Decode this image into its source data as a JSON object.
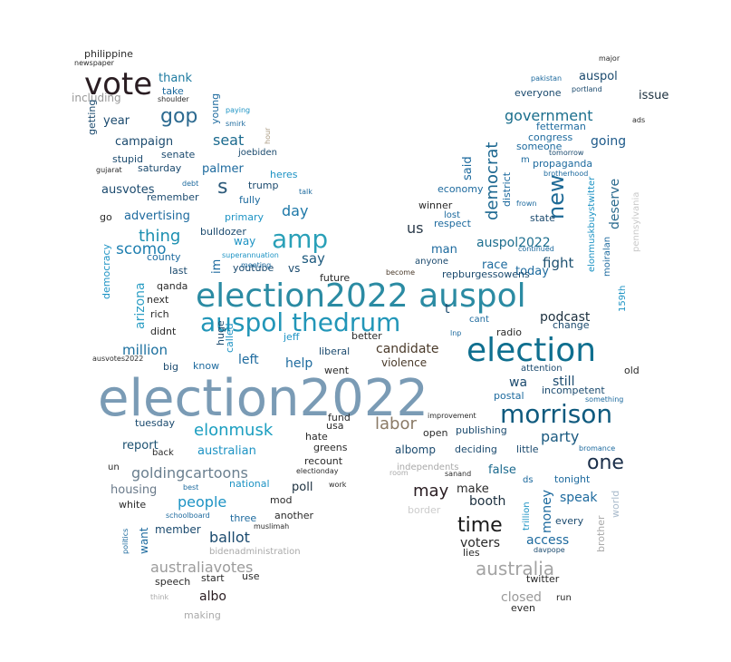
{
  "word_cloud": {
    "words": [
      {
        "text": "election2022",
        "color": "#7a9bb5"
      },
      {
        "text": "election2022 auspol",
        "color": "#2b8ba3"
      },
      {
        "text": "election",
        "color": "#0f6f8f"
      },
      {
        "text": "auspol thedrum",
        "color": "#2296b8"
      },
      {
        "text": "vote",
        "color": "#2a1d22"
      },
      {
        "text": "amp",
        "color": "#2aa0b8"
      },
      {
        "text": "morrison",
        "color": "#0f5a7e"
      },
      {
        "text": "time",
        "color": "#1a1a1a"
      },
      {
        "text": "australia",
        "color": "#a3a3a3"
      },
      {
        "text": "new",
        "color": "#1e6a96"
      },
      {
        "text": "one",
        "color": "#1b2f4a"
      },
      {
        "text": "gop",
        "color": "#2c6a90"
      },
      {
        "text": "s",
        "color": "#2c5a7a"
      },
      {
        "text": "government",
        "color": "#1a6e8c"
      },
      {
        "text": "democrat",
        "color": "#1c6790"
      },
      {
        "text": "elonmusk",
        "color": "#1b9ec0"
      },
      {
        "text": "goldingcartoons",
        "color": "#6a7f8f"
      },
      {
        "text": "thing",
        "color": "#1b8fb0"
      },
      {
        "text": "scomo",
        "color": "#1f7fb0"
      },
      {
        "text": "labor",
        "color": "#8a7a66"
      },
      {
        "text": "party",
        "color": "#1b5a80"
      },
      {
        "text": "ballot",
        "color": "#1b4a6e"
      },
      {
        "text": "people",
        "color": "#1d93c4"
      },
      {
        "text": "australiavotes",
        "color": "#9b9b9b"
      },
      {
        "text": "may",
        "color": "#2a1d22"
      },
      {
        "text": "seat",
        "color": "#1b6a8e"
      },
      {
        "text": "day",
        "color": "#1d78a8"
      },
      {
        "text": "say",
        "color": "#1d5a7e"
      },
      {
        "text": "us",
        "color": "#2a3a4a"
      },
      {
        "text": "fight",
        "color": "#1d5070"
      },
      {
        "text": "going",
        "color": "#1e5a8a"
      },
      {
        "text": "deserve",
        "color": "#2a6a8e"
      },
      {
        "text": "auspol2022",
        "color": "#1d6e8e"
      },
      {
        "text": "million",
        "color": "#1a6e9e"
      },
      {
        "text": "arizona",
        "color": "#2c9ec4"
      },
      {
        "text": "podcast",
        "color": "#1b2f3e"
      },
      {
        "text": "wa",
        "color": "#1b4a6e"
      },
      {
        "text": "still",
        "color": "#1b4a6e"
      },
      {
        "text": "money",
        "color": "#1d6a9e"
      },
      {
        "text": "access",
        "color": "#1d6a9e"
      },
      {
        "text": "speak",
        "color": "#1d6a9e"
      },
      {
        "text": "closed",
        "color": "#9a9a9a"
      },
      {
        "text": "albo",
        "color": "#2a1d22"
      },
      {
        "text": "help",
        "color": "#1d6a9e"
      },
      {
        "text": "left",
        "color": "#1d6a9e"
      },
      {
        "text": "candidate",
        "color": "#4a3a2a"
      },
      {
        "text": "voters",
        "color": "#2a2a2a"
      },
      {
        "text": "booth",
        "color": "#1b2f3e"
      },
      {
        "text": "make",
        "color": "#2a2a2a"
      },
      {
        "text": "false",
        "color": "#1b6a8e"
      },
      {
        "text": "housing",
        "color": "#6a7a8a"
      },
      {
        "text": "report",
        "color": "#1b5070"
      },
      {
        "text": "australian",
        "color": "#1d93c4"
      },
      {
        "text": "campaign",
        "color": "#1b4a6e"
      },
      {
        "text": "thank",
        "color": "#1d7aa0"
      },
      {
        "text": "year",
        "color": "#1b4a6e"
      },
      {
        "text": "ausvotes",
        "color": "#1b4a6e"
      },
      {
        "text": "advertising",
        "color": "#1d6a9e"
      },
      {
        "text": "palmer",
        "color": "#1d6a9e"
      },
      {
        "text": "im",
        "color": "#1d6a9e"
      },
      {
        "text": "vs",
        "color": "#1b4a6e"
      },
      {
        "text": "way",
        "color": "#1d93c4"
      },
      {
        "text": "man",
        "color": "#1d6a9e"
      },
      {
        "text": "race",
        "color": "#1d6a9e"
      },
      {
        "text": "today",
        "color": "#1d6a9e"
      },
      {
        "text": "said",
        "color": "#1d6a9e"
      },
      {
        "text": "auspol",
        "color": "#1b4a6e"
      },
      {
        "text": "issue",
        "color": "#1b2f3e"
      },
      {
        "text": "everyone",
        "color": "#1b4a6e"
      },
      {
        "text": "fetterman",
        "color": "#1d6a9e"
      },
      {
        "text": "congress",
        "color": "#1d6a9e"
      },
      {
        "text": "propaganda",
        "color": "#1d6a9e"
      },
      {
        "text": "someone",
        "color": "#1d6a9e"
      },
      {
        "text": "poll",
        "color": "#1b2f3e"
      },
      {
        "text": "member",
        "color": "#1b4a6e"
      },
      {
        "text": "want",
        "color": "#1d6a9e"
      },
      {
        "text": "another",
        "color": "#2a2a2a"
      },
      {
        "text": "three",
        "color": "#1d6a9e"
      },
      {
        "text": "speech",
        "color": "#2a2a2a"
      },
      {
        "text": "start",
        "color": "#2a2a2a"
      },
      {
        "text": "use",
        "color": "#2a2a2a"
      },
      {
        "text": "making",
        "color": "#aaaaaa"
      },
      {
        "text": "white",
        "color": "#2a2a2a"
      },
      {
        "text": "national",
        "color": "#1d93c4"
      },
      {
        "text": "mod",
        "color": "#2a2a2a"
      },
      {
        "text": "recount",
        "color": "#2a2a2a"
      },
      {
        "text": "greens",
        "color": "#2a2a2a"
      },
      {
        "text": "hate",
        "color": "#2a2a2a"
      },
      {
        "text": "usa",
        "color": "#2a2a2a"
      },
      {
        "text": "fund",
        "color": "#2a2a2a"
      },
      {
        "text": "went",
        "color": "#2a2a2a"
      },
      {
        "text": "violence",
        "color": "#4a3a2a"
      },
      {
        "text": "liberal",
        "color": "#1b4a6e"
      },
      {
        "text": "better",
        "color": "#2a2a2a"
      },
      {
        "text": "future",
        "color": "#2a2a2a"
      },
      {
        "text": "jeff",
        "color": "#1d93c4"
      },
      {
        "text": "called",
        "color": "#1d93c4"
      },
      {
        "text": "huge",
        "color": "#1b4a6e"
      },
      {
        "text": "know",
        "color": "#1d6a9e"
      },
      {
        "text": "big",
        "color": "#1b4a6e"
      },
      {
        "text": "didnt",
        "color": "#2a2a2a"
      },
      {
        "text": "rich",
        "color": "#2a2a2a"
      },
      {
        "text": "next",
        "color": "#2a2a2a"
      },
      {
        "text": "qanda",
        "color": "#2a2a2a"
      },
      {
        "text": "last",
        "color": "#1b4a6e"
      },
      {
        "text": "county",
        "color": "#1d6a9e"
      },
      {
        "text": "democracy",
        "color": "#1d93c4"
      },
      {
        "text": "go",
        "color": "#2a2a2a"
      },
      {
        "text": "remember",
        "color": "#1b4a6e"
      },
      {
        "text": "saturday",
        "color": "#1b4a6e"
      },
      {
        "text": "stupid",
        "color": "#1b4a6e"
      },
      {
        "text": "senate",
        "color": "#1b4a6e"
      },
      {
        "text": "take",
        "color": "#1d6a9e"
      },
      {
        "text": "including",
        "color": "#999999"
      },
      {
        "text": "philippine",
        "color": "#2a2a2a"
      },
      {
        "text": "newspaper",
        "color": "#2a2a2a"
      },
      {
        "text": "getting",
        "color": "#1b4a6e"
      },
      {
        "text": "gujarat",
        "color": "#2a2a2a"
      },
      {
        "text": "young",
        "color": "#1d6a9e"
      },
      {
        "text": "shoulder",
        "color": "#2a2a2a"
      },
      {
        "text": "paying",
        "color": "#1d93c4"
      },
      {
        "text": "smirk",
        "color": "#1d6a9e"
      },
      {
        "text": "hour",
        "color": "#aa9a80"
      },
      {
        "text": "joebiden",
        "color": "#1b4a6e"
      },
      {
        "text": "heres",
        "color": "#1d93c4"
      },
      {
        "text": "trump",
        "color": "#1b4a6e"
      },
      {
        "text": "fully",
        "color": "#1d6a9e"
      },
      {
        "text": "talk",
        "color": "#1d6a9e"
      },
      {
        "text": "debt",
        "color": "#1d6a9e"
      },
      {
        "text": "primary",
        "color": "#1d93c4"
      },
      {
        "text": "bulldozer",
        "color": "#1b4a6e"
      },
      {
        "text": "youtube",
        "color": "#1b4a6e"
      },
      {
        "text": "superannuation",
        "color": "#1d93c4"
      },
      {
        "text": "meeting",
        "color": "#1d6a9e"
      },
      {
        "text": "ausvotes2022",
        "color": "#2a2a2a"
      },
      {
        "text": "tuesday",
        "color": "#1b4a6e"
      },
      {
        "text": "back",
        "color": "#2a2a2a"
      },
      {
        "text": "un",
        "color": "#2a2a2a"
      },
      {
        "text": "best",
        "color": "#1d6a9e"
      },
      {
        "text": "schoolboard",
        "color": "#1d6a9e"
      },
      {
        "text": "politics",
        "color": "#1d6a9e"
      },
      {
        "text": "muslimah",
        "color": "#2a2a2a"
      },
      {
        "text": "bidenadministration",
        "color": "#aaaaaa"
      },
      {
        "text": "work",
        "color": "#2a2a2a"
      },
      {
        "text": "electionday",
        "color": "#2a2a2a"
      },
      {
        "text": "think",
        "color": "#aaaaaa"
      },
      {
        "text": "major",
        "color": "#2a2a2a"
      },
      {
        "text": "pakistan",
        "color": "#1d6a9e"
      },
      {
        "text": "portland",
        "color": "#1b4a6e"
      },
      {
        "text": "ads",
        "color": "#2a2a2a"
      },
      {
        "text": "tomorrow",
        "color": "#1b4a6e"
      },
      {
        "text": "m",
        "color": "#1d6a9e"
      },
      {
        "text": "brotherhood",
        "color": "#1d6a9e"
      },
      {
        "text": "district",
        "color": "#1d6a9e"
      },
      {
        "text": "frown",
        "color": "#1d6a9e"
      },
      {
        "text": "state",
        "color": "#1b4a6e"
      },
      {
        "text": "economy",
        "color": "#1d6a9e"
      },
      {
        "text": "winner",
        "color": "#2a2a2a"
      },
      {
        "text": "lost",
        "color": "#1d6a9e"
      },
      {
        "text": "respect",
        "color": "#1d6a9e"
      },
      {
        "text": "continued",
        "color": "#1d6a9e"
      },
      {
        "text": "elonmuskbuystwitter",
        "color": "#1d93c4"
      },
      {
        "text": "pennsylvania",
        "color": "#c9c9c9"
      },
      {
        "text": "moiralan",
        "color": "#1d6a9e"
      },
      {
        "text": "159th",
        "color": "#1d93c4"
      },
      {
        "text": "anyone",
        "color": "#1b4a6e"
      },
      {
        "text": "repburgessowens",
        "color": "#1b4a6e"
      },
      {
        "text": "become",
        "color": "#4a3a2a"
      },
      {
        "text": "t",
        "color": "#1b4a6e"
      },
      {
        "text": "cant",
        "color": "#1d6a9e"
      },
      {
        "text": "radio",
        "color": "#2a2a2a"
      },
      {
        "text": "lnp",
        "color": "#1d6a9e"
      },
      {
        "text": "change",
        "color": "#1b4a6e"
      },
      {
        "text": "attention",
        "color": "#1b4a6e"
      },
      {
        "text": "incompetent",
        "color": "#1b4a6e"
      },
      {
        "text": "postal",
        "color": "#1d6a9e"
      },
      {
        "text": "old",
        "color": "#2a2a2a"
      },
      {
        "text": "something",
        "color": "#1d6a9e"
      },
      {
        "text": "improvement",
        "color": "#2a2a2a"
      },
      {
        "text": "open",
        "color": "#2a2a2a"
      },
      {
        "text": "publishing",
        "color": "#1b4a6e"
      },
      {
        "text": "bromance",
        "color": "#1d6a9e"
      },
      {
        "text": "albomp",
        "color": "#1b4a6e"
      },
      {
        "text": "deciding",
        "color": "#1b4a6e"
      },
      {
        "text": "little",
        "color": "#1b4a6e"
      },
      {
        "text": "independents",
        "color": "#aaaaaa"
      },
      {
        "text": "room",
        "color": "#aaaaaa"
      },
      {
        "text": "sanand",
        "color": "#2a2a2a"
      },
      {
        "text": "ds",
        "color": "#1d6a9e"
      },
      {
        "text": "tonight",
        "color": "#1d6a9e"
      },
      {
        "text": "border",
        "color": "#cccccc"
      },
      {
        "text": "trillion",
        "color": "#1d93c4"
      },
      {
        "text": "every",
        "color": "#1b4a6e"
      },
      {
        "text": "world",
        "color": "#aabbcc"
      },
      {
        "text": "brother",
        "color": "#aaaaaa"
      },
      {
        "text": "lies",
        "color": "#2a2a2a"
      },
      {
        "text": "davpope",
        "color": "#1b4a6e"
      },
      {
        "text": "twitter",
        "color": "#2a2a2a"
      },
      {
        "text": "even",
        "color": "#2a2a2a"
      },
      {
        "text": "run",
        "color": "#2a2a2a"
      }
    ]
  }
}
